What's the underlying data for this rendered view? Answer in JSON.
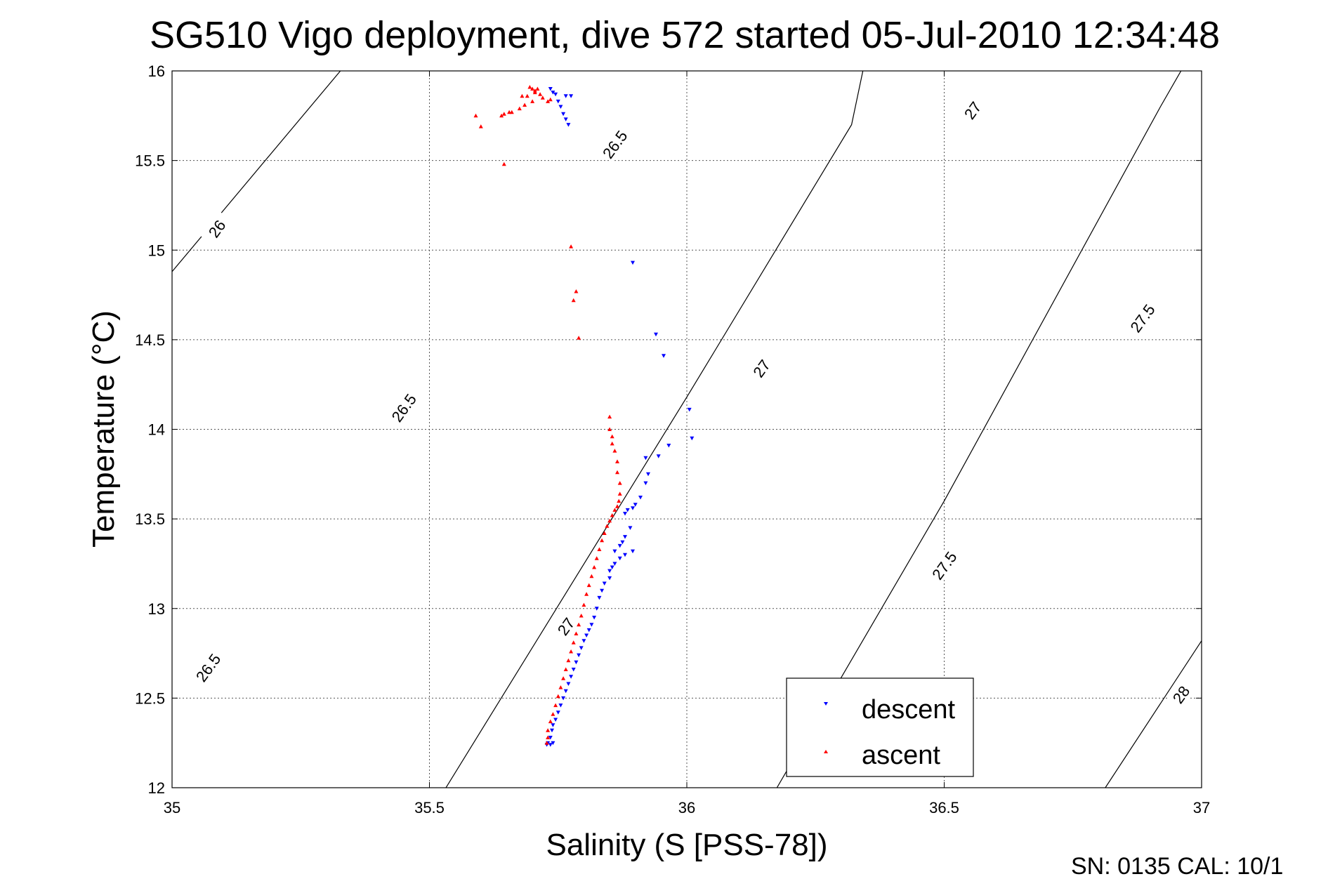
{
  "chart_data": {
    "type": "scatter",
    "title": "SG510 Vigo deployment, dive 572 started 05-Jul-2010 12:34:48",
    "xlabel": "Salinity (S [PSS-78])",
    "ylabel": "Temperature (°C)",
    "xlim": [
      35,
      37
    ],
    "ylim": [
      12,
      16
    ],
    "xticks": [
      "35",
      "35.5",
      "36",
      "36.5",
      "37"
    ],
    "xtick_values": [
      35,
      35.5,
      36,
      36.5,
      37
    ],
    "yticks": [
      "12",
      "12.5",
      "13",
      "13.5",
      "14",
      "14.5",
      "15",
      "15.5",
      "16"
    ],
    "ytick_values": [
      12,
      12.5,
      13,
      13.5,
      14,
      14.5,
      15,
      15.5,
      16
    ],
    "grid": true,
    "legend_position": "bottom-right",
    "contours": [
      {
        "level": "26",
        "points": [
          [
            35.0,
            14.88
          ],
          [
            35.327,
            16.0
          ]
        ]
      },
      {
        "level": "26.5",
        "points": [
          [
            35.532,
            12.0
          ],
          [
            36.0,
            14.18
          ],
          [
            36.32,
            15.7
          ],
          [
            36.342,
            16.0
          ]
        ]
      },
      {
        "level": "27",
        "points": [
          [
            36.175,
            12.0
          ],
          [
            36.5,
            13.6
          ],
          [
            36.92,
            15.8
          ],
          [
            36.98,
            16.1
          ]
        ]
      },
      {
        "level": "27.5",
        "points": [
          [
            36.813,
            12.0
          ],
          [
            37.0,
            12.82
          ]
        ]
      },
      {
        "level": "28",
        "points": [
          [
            37.0,
            12.0
          ]
        ]
      }
    ],
    "contour_labels": [
      {
        "text": "26",
        "s": 35.087,
        "t": 15.12,
        "rot": -54
      },
      {
        "text": "26.5",
        "s": 35.45,
        "t": 14.12,
        "rot": -54
      },
      {
        "text": "26.5",
        "s": 35.07,
        "t": 12.67,
        "rot": -54
      },
      {
        "text": "26.5",
        "s": 35.86,
        "t": 15.59,
        "rot": -54
      },
      {
        "text": "27",
        "s": 35.765,
        "t": 12.9,
        "rot": -54
      },
      {
        "text": "27",
        "s": 36.145,
        "t": 14.34,
        "rot": -54
      },
      {
        "text": "27",
        "s": 36.555,
        "t": 15.78,
        "rot": -54
      },
      {
        "text": "27.5",
        "s": 36.5,
        "t": 13.24,
        "rot": -54
      },
      {
        "text": "27.5",
        "s": 36.885,
        "t": 14.62,
        "rot": -54
      },
      {
        "text": "28",
        "s": 36.96,
        "t": 12.52,
        "rot": -54
      }
    ],
    "series": [
      {
        "name": "descent",
        "color": "#0000ff",
        "marker": "triangle-down",
        "points": [
          [
            35.735,
            15.9
          ],
          [
            35.74,
            15.88
          ],
          [
            35.745,
            15.87
          ],
          [
            35.75,
            15.83
          ],
          [
            35.755,
            15.8
          ],
          [
            35.76,
            15.76
          ],
          [
            35.765,
            15.73
          ],
          [
            35.77,
            15.7
          ],
          [
            35.775,
            15.86
          ],
          [
            35.765,
            15.86
          ],
          [
            35.895,
            14.93
          ],
          [
            35.94,
            14.53
          ],
          [
            35.955,
            14.41
          ],
          [
            36.005,
            14.11
          ],
          [
            36.01,
            13.95
          ],
          [
            35.965,
            13.91
          ],
          [
            35.945,
            13.85
          ],
          [
            35.92,
            13.84
          ],
          [
            35.925,
            13.75
          ],
          [
            35.92,
            13.7
          ],
          [
            35.91,
            13.62
          ],
          [
            35.9,
            13.58
          ],
          [
            35.895,
            13.56
          ],
          [
            35.885,
            13.55
          ],
          [
            35.88,
            13.53
          ],
          [
            35.89,
            13.45
          ],
          [
            35.88,
            13.4
          ],
          [
            35.875,
            13.37
          ],
          [
            35.87,
            13.35
          ],
          [
            35.86,
            13.32
          ],
          [
            35.895,
            13.32
          ],
          [
            35.88,
            13.3
          ],
          [
            35.87,
            13.28
          ],
          [
            35.86,
            13.25
          ],
          [
            35.855,
            13.23
          ],
          [
            35.85,
            13.21
          ],
          [
            35.85,
            13.17
          ],
          [
            35.84,
            13.14
          ],
          [
            35.835,
            13.1
          ],
          [
            35.83,
            13.06
          ],
          [
            35.825,
            13.0
          ],
          [
            35.82,
            12.95
          ],
          [
            35.815,
            12.91
          ],
          [
            35.81,
            12.88
          ],
          [
            35.805,
            12.85
          ],
          [
            35.8,
            12.82
          ],
          [
            35.795,
            12.78
          ],
          [
            35.79,
            12.74
          ],
          [
            35.785,
            12.7
          ],
          [
            35.78,
            12.66
          ],
          [
            35.775,
            12.62
          ],
          [
            35.77,
            12.58
          ],
          [
            35.765,
            12.54
          ],
          [
            35.76,
            12.5
          ],
          [
            35.755,
            12.46
          ],
          [
            35.75,
            12.42
          ],
          [
            35.745,
            12.38
          ],
          [
            35.74,
            12.35
          ],
          [
            35.738,
            12.32
          ],
          [
            35.735,
            12.28
          ],
          [
            35.73,
            12.25
          ],
          [
            35.728,
            12.24
          ],
          [
            35.735,
            12.24
          ],
          [
            35.74,
            12.25
          ]
        ]
      },
      {
        "name": "ascent",
        "color": "#ff0000",
        "marker": "triangle-up",
        "points": [
          [
            35.695,
            15.91
          ],
          [
            35.7,
            15.9
          ],
          [
            35.705,
            15.89
          ],
          [
            35.71,
            15.9
          ],
          [
            35.705,
            15.88
          ],
          [
            35.715,
            15.87
          ],
          [
            35.69,
            15.86
          ],
          [
            35.68,
            15.86
          ],
          [
            35.72,
            15.85
          ],
          [
            35.735,
            15.84
          ],
          [
            35.73,
            15.83
          ],
          [
            35.7,
            15.83
          ],
          [
            35.685,
            15.81
          ],
          [
            35.675,
            15.79
          ],
          [
            35.66,
            15.77
          ],
          [
            35.645,
            15.76
          ],
          [
            35.655,
            15.77
          ],
          [
            35.64,
            15.75
          ],
          [
            35.59,
            15.75
          ],
          [
            35.6,
            15.69
          ],
          [
            35.645,
            15.48
          ],
          [
            35.775,
            15.02
          ],
          [
            35.785,
            14.77
          ],
          [
            35.78,
            14.72
          ],
          [
            35.79,
            14.51
          ],
          [
            35.85,
            14.07
          ],
          [
            35.85,
            14.0
          ],
          [
            35.855,
            13.96
          ],
          [
            35.855,
            13.92
          ],
          [
            35.86,
            13.88
          ],
          [
            35.865,
            13.82
          ],
          [
            35.865,
            13.76
          ],
          [
            35.87,
            13.7
          ],
          [
            35.87,
            13.64
          ],
          [
            35.868,
            13.6
          ],
          [
            35.865,
            13.57
          ],
          [
            35.86,
            13.55
          ],
          [
            35.855,
            13.52
          ],
          [
            35.85,
            13.49
          ],
          [
            35.845,
            13.46
          ],
          [
            35.84,
            13.42
          ],
          [
            35.835,
            13.38
          ],
          [
            35.83,
            13.33
          ],
          [
            35.825,
            13.28
          ],
          [
            35.82,
            13.23
          ],
          [
            35.815,
            13.18
          ],
          [
            35.81,
            13.13
          ],
          [
            35.805,
            13.08
          ],
          [
            35.8,
            13.02
          ],
          [
            35.795,
            12.96
          ],
          [
            35.79,
            12.91
          ],
          [
            35.785,
            12.86
          ],
          [
            35.78,
            12.81
          ],
          [
            35.775,
            12.76
          ],
          [
            35.77,
            12.71
          ],
          [
            35.765,
            12.66
          ],
          [
            35.76,
            12.61
          ],
          [
            35.755,
            12.56
          ],
          [
            35.75,
            12.51
          ],
          [
            35.745,
            12.46
          ],
          [
            35.74,
            12.41
          ],
          [
            35.735,
            12.37
          ],
          [
            35.73,
            12.32
          ],
          [
            35.73,
            12.28
          ],
          [
            35.728,
            12.25
          ]
        ]
      }
    ]
  },
  "legend": {
    "descent": "descent",
    "ascent": "ascent"
  },
  "footer": {
    "text": "SN: 0135  CAL: 10/1"
  }
}
